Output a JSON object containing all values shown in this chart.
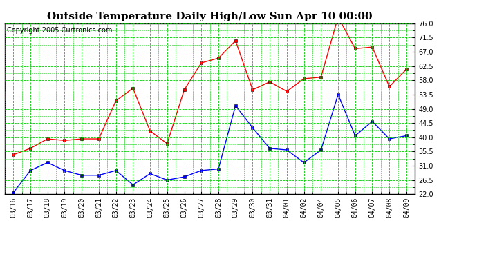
{
  "title": "Outside Temperature Daily High/Low Sun Apr 10 00:00",
  "copyright": "Copyright 2005 Curtronics.com",
  "x_labels": [
    "03/16",
    "03/17",
    "03/18",
    "03/19",
    "03/20",
    "03/21",
    "03/22",
    "03/23",
    "03/24",
    "03/25",
    "03/26",
    "03/27",
    "03/28",
    "03/29",
    "03/30",
    "03/31",
    "04/01",
    "04/02",
    "04/04",
    "04/05",
    "04/06",
    "04/07",
    "04/08",
    "04/09"
  ],
  "high_temps": [
    34.5,
    36.5,
    39.5,
    39.0,
    39.5,
    39.5,
    51.5,
    55.5,
    42.0,
    38.0,
    55.0,
    63.5,
    65.0,
    70.5,
    55.0,
    57.5,
    54.5,
    58.5,
    59.0,
    78.0,
    68.0,
    68.5,
    56.0,
    61.5
  ],
  "low_temps": [
    22.5,
    29.5,
    32.0,
    29.5,
    28.0,
    28.0,
    29.5,
    25.0,
    28.5,
    26.5,
    27.5,
    29.5,
    30.0,
    50.0,
    43.0,
    36.5,
    36.0,
    32.0,
    36.0,
    53.5,
    40.5,
    45.0,
    39.5,
    40.5
  ],
  "y_ticks": [
    22.0,
    26.5,
    31.0,
    35.5,
    40.0,
    44.5,
    49.0,
    53.5,
    58.0,
    62.5,
    67.0,
    71.5,
    76.0
  ],
  "y_min": 22.0,
  "y_max": 76.0,
  "high_color": "#ff0000",
  "low_color": "#0000ff",
  "grid_color": "#00cc00",
  "bg_color": "#ffffff",
  "marker": "s",
  "marker_size": 3,
  "title_fontsize": 11,
  "tick_fontsize": 7,
  "copyright_fontsize": 7
}
